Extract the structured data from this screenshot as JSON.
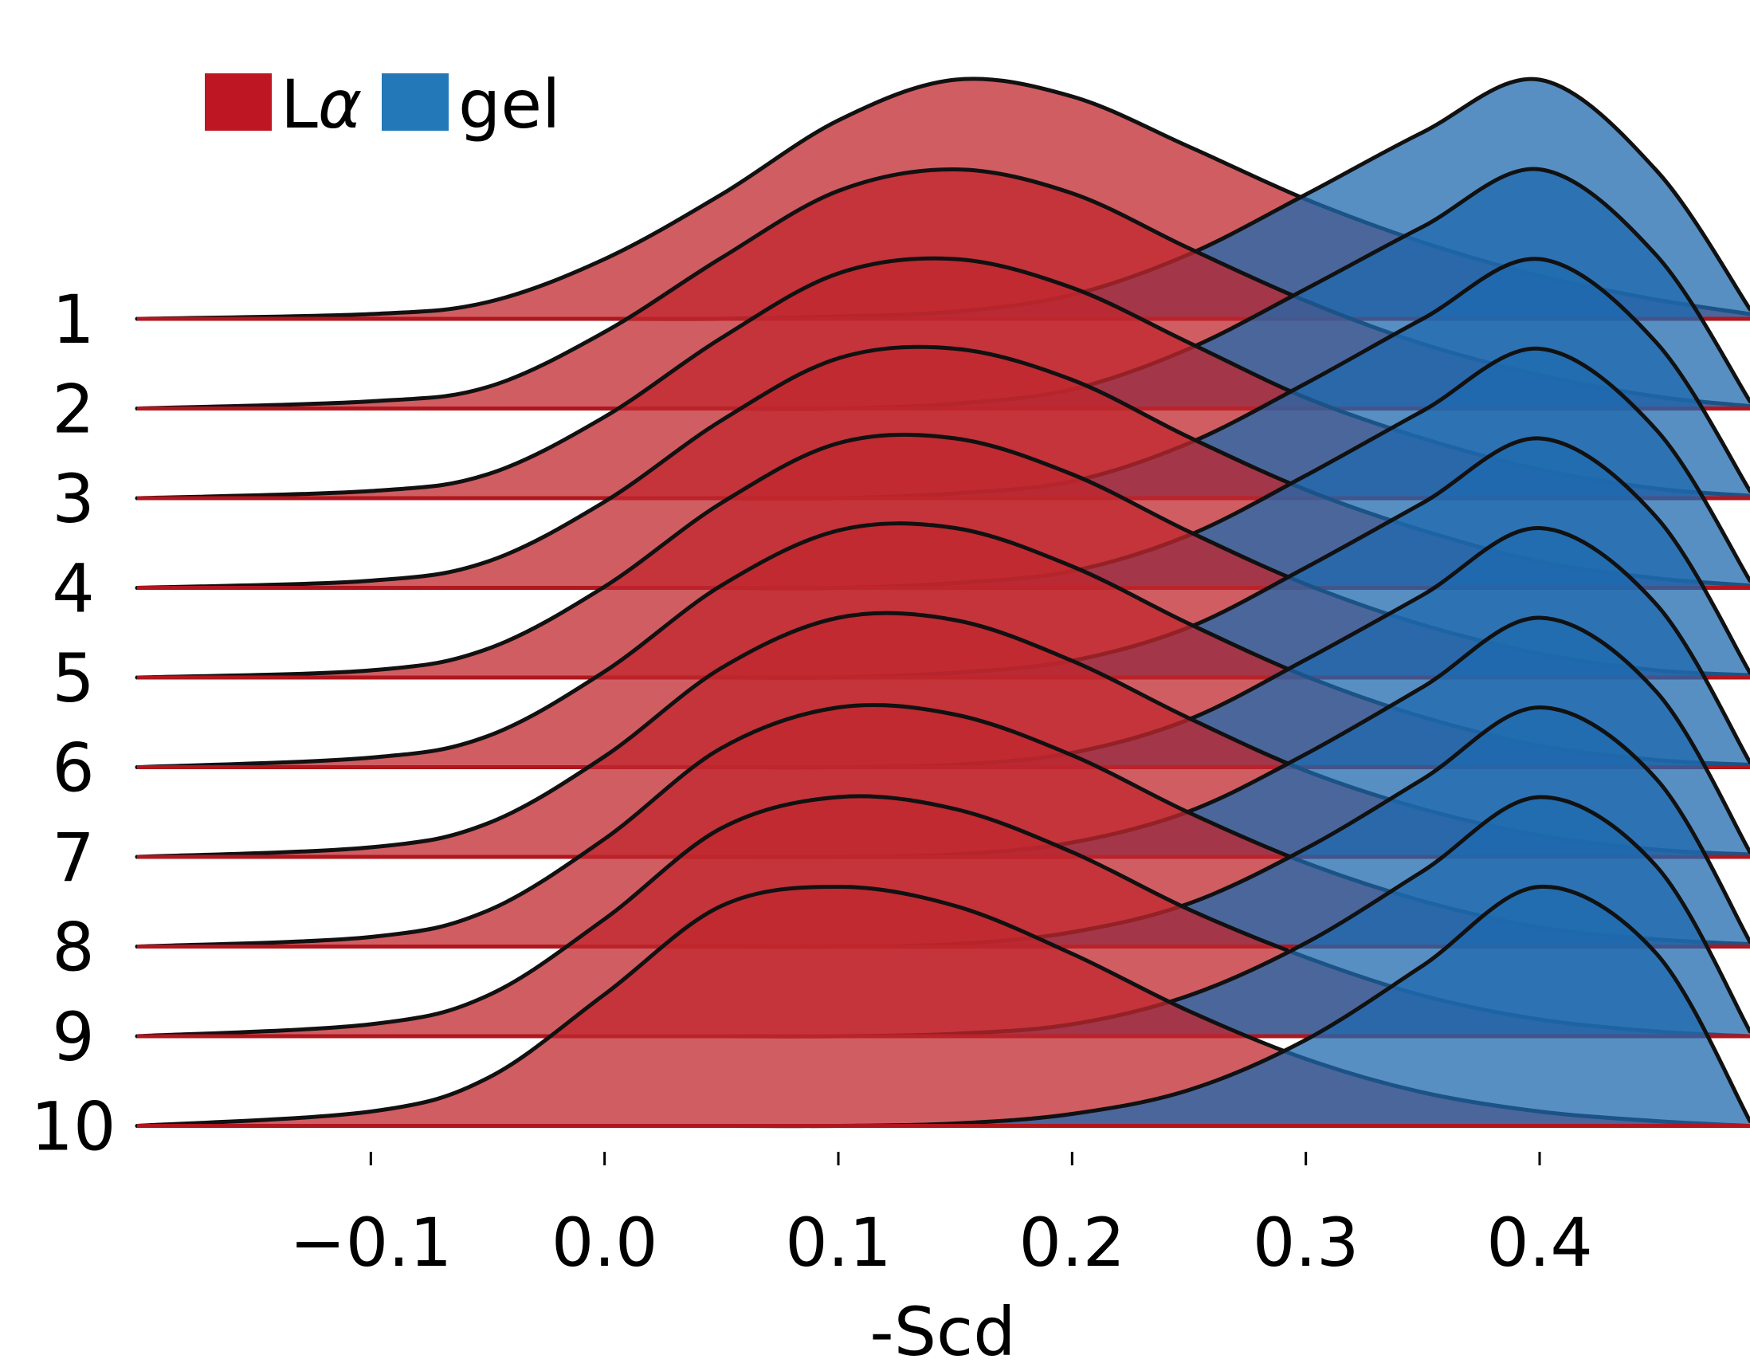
{
  "chart_data": {
    "type": "area",
    "kind": "ridgeline",
    "xlabel": "-Scd",
    "ylabel": "",
    "title": "",
    "xlim": [
      -0.2,
      0.49
    ],
    "x_ticks": [
      -0.1,
      0.0,
      0.1,
      0.2,
      0.3,
      0.4
    ],
    "x_tick_labels": [
      "−0.1",
      "0.0",
      "0.1",
      "0.2",
      "0.3",
      "0.4"
    ],
    "ridge_labels": [
      "1",
      "2",
      "3",
      "4",
      "5",
      "6",
      "7",
      "8",
      "9",
      "10"
    ],
    "legend": {
      "placement": "top-left",
      "entries": [
        {
          "label_main": "L",
          "label_sub": "α",
          "color": "#be1622",
          "series": "La"
        },
        {
          "label_main": "gel",
          "label_sub": "",
          "color": "#2378b8",
          "series": "gel"
        }
      ]
    },
    "colors": {
      "La_fill": "#c0272d",
      "gel_fill": "#1f69af",
      "baseline": "#b0161e",
      "outline": "#111111"
    },
    "fill_opacity": 0.75,
    "grid": false,
    "series": [
      {
        "name": "Lα",
        "key": "La",
        "x": [
          -0.2,
          -0.1,
          -0.05,
          0.0,
          0.05,
          0.1,
          0.15,
          0.2,
          0.25,
          0.3,
          0.35,
          0.4,
          0.45,
          0.49
        ],
        "ridges": [
          [
            0.0,
            0.02,
            0.07,
            0.25,
            0.52,
            0.83,
            1.0,
            0.93,
            0.72,
            0.5,
            0.32,
            0.18,
            0.08,
            0.02
          ],
          [
            0.0,
            0.03,
            0.09,
            0.32,
            0.63,
            0.91,
            1.0,
            0.9,
            0.67,
            0.45,
            0.27,
            0.14,
            0.05,
            0.01
          ],
          [
            0.0,
            0.03,
            0.1,
            0.34,
            0.67,
            0.94,
            1.0,
            0.88,
            0.65,
            0.42,
            0.25,
            0.12,
            0.04,
            0.01
          ],
          [
            0.0,
            0.03,
            0.11,
            0.36,
            0.7,
            0.96,
            1.0,
            0.87,
            0.63,
            0.41,
            0.24,
            0.11,
            0.04,
            0.01
          ],
          [
            0.0,
            0.03,
            0.12,
            0.38,
            0.73,
            0.98,
            1.0,
            0.85,
            0.61,
            0.39,
            0.22,
            0.1,
            0.03,
            0.01
          ],
          [
            0.0,
            0.04,
            0.13,
            0.4,
            0.76,
            0.99,
            1.0,
            0.84,
            0.6,
            0.38,
            0.21,
            0.09,
            0.03,
            0.01
          ],
          [
            0.0,
            0.04,
            0.14,
            0.42,
            0.79,
            1.0,
            0.99,
            0.82,
            0.58,
            0.36,
            0.2,
            0.09,
            0.03,
            0.01
          ],
          [
            0.0,
            0.04,
            0.15,
            0.45,
            0.83,
            1.0,
            0.97,
            0.8,
            0.56,
            0.35,
            0.19,
            0.08,
            0.03,
            0.01
          ],
          [
            0.0,
            0.05,
            0.17,
            0.49,
            0.87,
            1.0,
            0.95,
            0.77,
            0.53,
            0.33,
            0.17,
            0.07,
            0.02,
            0.0
          ],
          [
            0.0,
            0.06,
            0.2,
            0.55,
            0.92,
            1.0,
            0.92,
            0.72,
            0.48,
            0.28,
            0.14,
            0.06,
            0.02,
            0.0
          ]
        ]
      },
      {
        "name": "gel",
        "key": "gel",
        "x": [
          -0.2,
          -0.1,
          -0.05,
          0.0,
          0.05,
          0.1,
          0.15,
          0.2,
          0.25,
          0.3,
          0.35,
          0.4,
          0.45,
          0.49
        ],
        "ridges": [
          [
            0.0,
            0.0,
            0.0,
            0.0,
            0.0,
            0.01,
            0.03,
            0.1,
            0.27,
            0.52,
            0.78,
            1.0,
            0.62,
            0.04
          ],
          [
            0.0,
            0.0,
            0.0,
            0.0,
            0.0,
            0.0,
            0.02,
            0.08,
            0.25,
            0.5,
            0.76,
            1.0,
            0.64,
            0.03
          ],
          [
            0.0,
            0.0,
            0.0,
            0.0,
            0.0,
            0.0,
            0.02,
            0.07,
            0.23,
            0.48,
            0.75,
            1.0,
            0.65,
            0.03
          ],
          [
            0.0,
            0.0,
            0.0,
            0.0,
            0.0,
            0.0,
            0.02,
            0.07,
            0.22,
            0.47,
            0.74,
            1.0,
            0.66,
            0.03
          ],
          [
            0.0,
            0.0,
            0.0,
            0.0,
            0.0,
            0.0,
            0.02,
            0.07,
            0.21,
            0.46,
            0.73,
            1.0,
            0.67,
            0.02
          ],
          [
            0.0,
            0.0,
            0.0,
            0.0,
            0.0,
            0.0,
            0.01,
            0.06,
            0.2,
            0.45,
            0.72,
            1.0,
            0.68,
            0.02
          ],
          [
            0.0,
            0.0,
            0.0,
            0.0,
            0.0,
            0.0,
            0.01,
            0.06,
            0.19,
            0.43,
            0.71,
            1.0,
            0.69,
            0.02
          ],
          [
            0.0,
            0.0,
            0.0,
            0.0,
            0.0,
            0.0,
            0.01,
            0.06,
            0.18,
            0.41,
            0.7,
            1.0,
            0.7,
            0.02
          ],
          [
            0.0,
            0.0,
            0.0,
            0.0,
            0.0,
            0.0,
            0.01,
            0.05,
            0.17,
            0.39,
            0.69,
            1.0,
            0.71,
            0.02
          ],
          [
            0.0,
            0.0,
            0.0,
            0.0,
            0.0,
            0.0,
            0.01,
            0.05,
            0.15,
            0.36,
            0.67,
            1.0,
            0.72,
            0.02
          ]
        ]
      }
    ]
  }
}
